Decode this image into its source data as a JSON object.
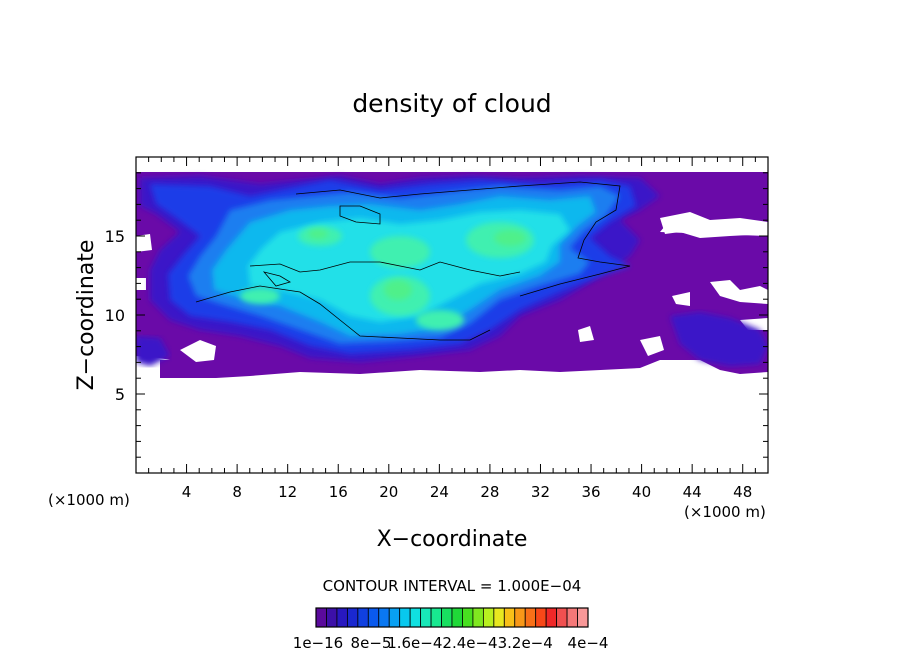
{
  "chart_data": {
    "type": "heatmap",
    "title": "density of cloud",
    "xlabel": "X−coordinate",
    "ylabel": "Z−coordinate",
    "x_unit_left": "(×1000 m)",
    "x_unit_right": "(×1000 m)",
    "xlim": [
      0,
      50
    ],
    "ylim": [
      0,
      20
    ],
    "x_ticks": [
      {
        "value": 4,
        "label": "4"
      },
      {
        "value": 8,
        "label": "8"
      },
      {
        "value": 12,
        "label": "12"
      },
      {
        "value": 16,
        "label": "16"
      },
      {
        "value": 20,
        "label": "20"
      },
      {
        "value": 24,
        "label": "24"
      },
      {
        "value": 28,
        "label": "28"
      },
      {
        "value": 32,
        "label": "32"
      },
      {
        "value": 36,
        "label": "36"
      },
      {
        "value": 40,
        "label": "40"
      },
      {
        "value": 44,
        "label": "44"
      },
      {
        "value": 48,
        "label": "48"
      }
    ],
    "y_ticks": [
      {
        "value": 5,
        "label": "5"
      },
      {
        "value": 10,
        "label": "10"
      },
      {
        "value": 15,
        "label": "15"
      }
    ],
    "contour_interval_text": "CONTOUR INTERVAL = 1.000E−04",
    "colorbar_labels": [
      "1e−16",
      "8e−5",
      "1.6e−42.4e−43.2e−4",
      "4e−4"
    ],
    "colorbar_colors": [
      "#5a0a9c",
      "#3c10a8",
      "#2818c0",
      "#1a28d0",
      "#1040e0",
      "#0a5aee",
      "#0a78f2",
      "#08a0f2",
      "#08c8ee",
      "#10e0e0",
      "#18e8b8",
      "#18e890",
      "#18e060",
      "#20d838",
      "#48e020",
      "#80e820",
      "#b8f020",
      "#e8e820",
      "#f8c018",
      "#f89818",
      "#f87018",
      "#f84818",
      "#f02828",
      "#f05050",
      "#f47878",
      "#f89898"
    ],
    "cloud_color_levels": [
      "#6a0aa8",
      "#3a18c8",
      "#1d3ce8",
      "#1a7ef0",
      "#10b8ee",
      "#20e0e8",
      "#40f0b0",
      "#50f08a"
    ]
  }
}
